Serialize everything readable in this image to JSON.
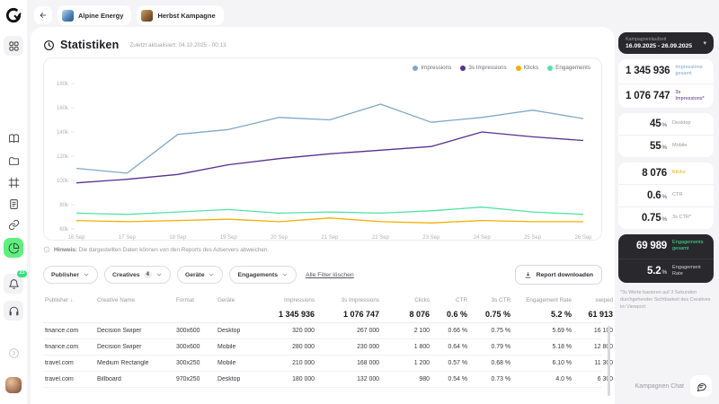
{
  "colors": {
    "impressions": "#7fa8c9",
    "impressions_3s": "#57308f",
    "klicks": "#f0b000",
    "engagements": "#3fe08f",
    "accent_green": "#5df07d",
    "dark_card": "#29292d"
  },
  "topbar": {
    "breadcrumbs": [
      {
        "label": "Alpine Energy"
      },
      {
        "label": "Herbst Kampagne"
      }
    ]
  },
  "sidebar": {
    "notification_count": "23",
    "icons": [
      "apps",
      "book",
      "folder",
      "artboard",
      "document",
      "link",
      "pie-chart",
      "bell",
      "headphones",
      "arrow-circle",
      "avatar"
    ]
  },
  "stats": {
    "title": "Statistiken",
    "updated": "Zuletzt aktualisiert: 04.10.2025 - 00:13"
  },
  "chart_data": {
    "type": "line",
    "title": "",
    "x": [
      "16 Sep",
      "17 Sep",
      "18 Sep",
      "19 Sep",
      "20 Sep",
      "21 Sep",
      "22 Sep",
      "23 Sep",
      "24 Sep",
      "25 Sep",
      "26 Sep"
    ],
    "y_unit": "k",
    "ylim": [
      60,
      185
    ],
    "yticks": [
      "180k",
      "160k",
      "140k",
      "120k",
      "100k",
      "80k",
      "60k"
    ],
    "grid": false,
    "legend_position": "top-right",
    "series": [
      {
        "name": "Impressions",
        "color": "#7fa8c9",
        "values": [
          110,
          106,
          138,
          142,
          152,
          150,
          163,
          148,
          152,
          158,
          151
        ]
      },
      {
        "name": "3s Impressions",
        "color": "#57308f",
        "values": [
          98,
          101,
          105,
          113,
          118,
          122,
          125,
          128,
          140,
          136,
          133
        ]
      },
      {
        "name": "Klicks",
        "color": "#f0b000",
        "values": [
          67,
          66,
          67,
          68,
          66,
          69,
          66,
          65,
          67,
          66,
          66
        ]
      },
      {
        "name": "Engagements",
        "color": "#52e3a4",
        "values": [
          73,
          72,
          74,
          76,
          73,
          74,
          73,
          75,
          78,
          74,
          72
        ]
      }
    ]
  },
  "hint": {
    "prefix": "Hinweis:",
    "text": " Die dargestellten Daten können von den Reports des Adservers abweichen."
  },
  "filters": {
    "items": [
      {
        "label": "Publisher"
      },
      {
        "label": "Creatives",
        "count": "4"
      },
      {
        "label": "Geräte"
      },
      {
        "label": "Engagements"
      }
    ],
    "clear_label": "Alle Filter löschen",
    "download_label": "Report downloaden"
  },
  "table": {
    "columns": [
      "Publisher",
      "Creative Name",
      "Format",
      "Geräte",
      "Impressions",
      "3s Impressions",
      "Clicks",
      "CTR",
      "3s CTR",
      "Engagement Rate",
      "swiped"
    ],
    "sort_column": "Publisher",
    "totals": [
      "",
      "",
      "",
      "",
      "1 345 936",
      "1 076 747",
      "8 076",
      "0.6 %",
      "0.75 %",
      "5.2 %",
      "61 913"
    ],
    "rows": [
      [
        "finance.com",
        "Decision Swiper",
        "300x600",
        "Desktop",
        "320 000",
        "267 000",
        "2 100",
        "0.66 %",
        "0.75 %",
        "5.69 %",
        "16 100"
      ],
      [
        "finance.com",
        "Decision Swiper",
        "300x600",
        "Mobile",
        "280 000",
        "230 000",
        "1 800",
        "0.64 %",
        "0.79 %",
        "5.18 %",
        "12 800"
      ],
      [
        "travel.com",
        "Medium Rectangle",
        "300x250",
        "Mobile",
        "210 000",
        "168 000",
        "1 200",
        "0.57 %",
        "0.68 %",
        "6.10 %",
        "11 300"
      ],
      [
        "travel.com",
        "Billboard",
        "970x250",
        "Desktop",
        "180 000",
        "132 000",
        "980",
        "0.54 %",
        "0.73 %",
        "4.0 %",
        "6 300"
      ]
    ]
  },
  "right_panel": {
    "period": {
      "label": "Kampagnenlaufzeit",
      "value": "16.09.2025 - 26.09.2025"
    },
    "impressions_total": {
      "value": "1 345 936",
      "label": "Impressions gesamt"
    },
    "impressions_3s": {
      "value": "1 076 747",
      "label": "3s Impressions*"
    },
    "desktop": {
      "value": "45",
      "unit": "%",
      "label": "Desktop"
    },
    "mobile": {
      "value": "55",
      "unit": "%",
      "label": "Mobile"
    },
    "klicks": {
      "value": "8 076",
      "label": "Klicks"
    },
    "ctr": {
      "value": "0.6",
      "unit": "%",
      "label": "CTR"
    },
    "ctr_3s": {
      "value": "0.75",
      "unit": "%",
      "label": "3s CTR*"
    },
    "engagements": {
      "value": "69 989",
      "label": "Engagements gesamt"
    },
    "engagement_rate": {
      "value": "5.2",
      "unit": "%",
      "label": "Engagement Rate"
    },
    "footnote": "*3s Werte basieren auf 3 Sekunden durchgehender Sichtbarkeit des Creatives im Viewport"
  },
  "chat": {
    "label": "Kampagnen Chat"
  }
}
